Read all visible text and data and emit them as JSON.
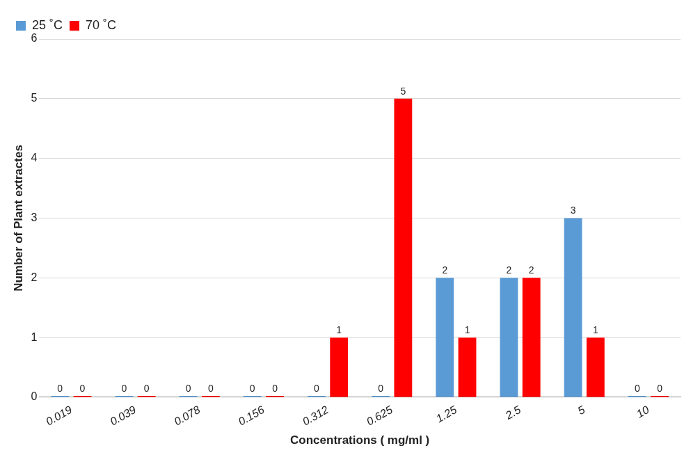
{
  "chart_data": {
    "type": "bar",
    "xlabel": "Concentrations ( mg/ml )",
    "ylabel": "Number of Plant extractes",
    "categories": [
      "0.019",
      "0.039",
      "0.078",
      "0.156",
      "0.312",
      "0.625",
      "1.25",
      "2.5",
      "5",
      "10"
    ],
    "series": [
      {
        "name": "25 ˚C",
        "color": "#5b9bd5",
        "values": [
          0,
          0,
          0,
          0,
          0,
          0,
          2,
          2,
          3,
          0
        ]
      },
      {
        "name": "70 ˚C",
        "color": "#ff0000",
        "values": [
          0,
          0,
          0,
          0,
          1,
          5,
          1,
          2,
          1,
          0
        ]
      }
    ],
    "ylim": [
      0,
      6
    ],
    "yticks": [
      0,
      1,
      2,
      3,
      4,
      5,
      6
    ],
    "grid": "y",
    "legend": "top left",
    "data_labels": true
  }
}
